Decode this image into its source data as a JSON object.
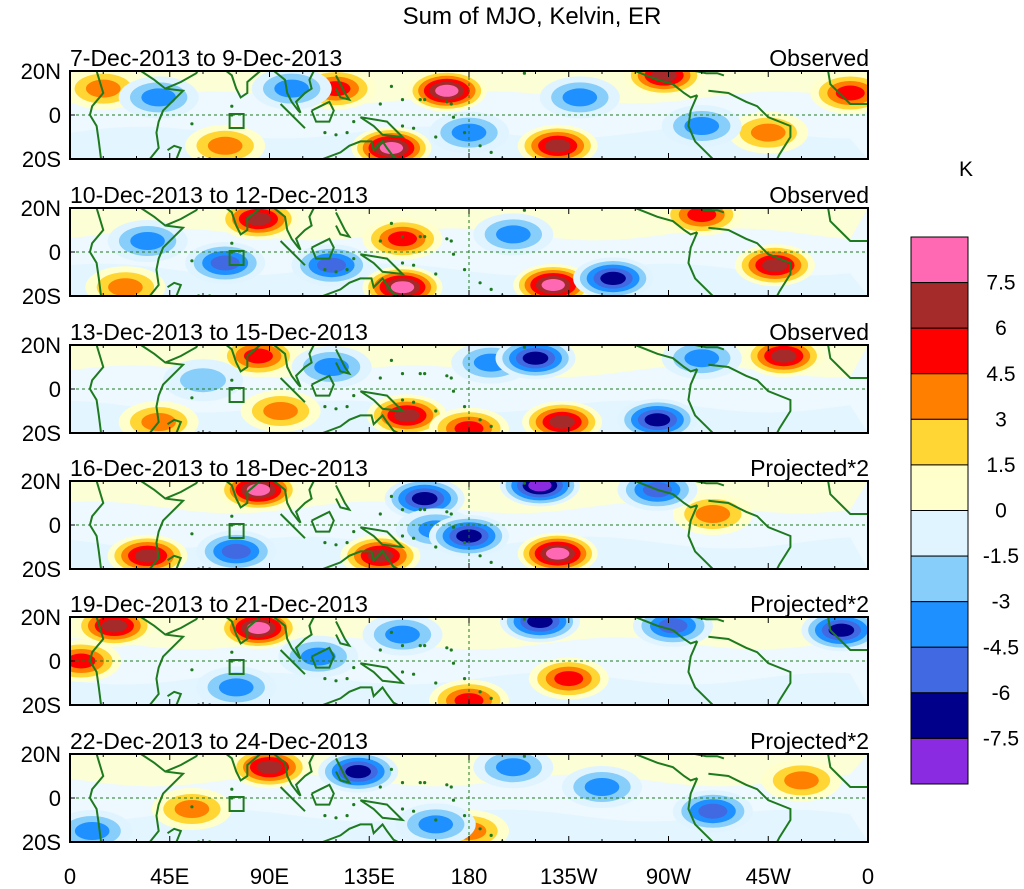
{
  "chart_data": {
    "type": "heatmap",
    "title": "Sum of MJO, Kelvin, ER",
    "units_label": "K",
    "x_ticks": [
      "0",
      "45E",
      "90E",
      "135E",
      "180",
      "135W",
      "90W",
      "45W",
      "0"
    ],
    "x_range_deg_east": [
      0,
      360
    ],
    "y_ticks": [
      "20N",
      "0",
      "20S"
    ],
    "y_range_deg": [
      -20,
      20
    ],
    "colorbar": {
      "colors": [
        "#8a2be2",
        "#00008b",
        "#4169e1",
        "#1e90ff",
        "#87cefa",
        "#e0f4ff",
        "#ffffcc",
        "#ffd633",
        "#ff8000",
        "#ff0000",
        "#a52a2a",
        "#ff69b4"
      ],
      "labels": [
        "-7.5",
        "-6",
        "-4.5",
        "-3",
        "-1.5",
        "0",
        "1.5",
        "3",
        "4.5",
        "6",
        "7.5"
      ]
    },
    "panels": [
      {
        "date_label": "7-Dec-2013 to 9-Dec-2013",
        "type_label": "Observed",
        "blobs": [
          {
            "lon": 120,
            "lat": 12,
            "value": 5
          },
          {
            "lon": 170,
            "lat": 11,
            "value": 8
          },
          {
            "lon": 145,
            "lat": -15,
            "value": 8
          },
          {
            "lon": 220,
            "lat": -14,
            "value": 7
          },
          {
            "lon": 268,
            "lat": 18,
            "value": 7
          },
          {
            "lon": 352,
            "lat": 10,
            "value": 5
          },
          {
            "lon": 315,
            "lat": -8,
            "value": 4
          },
          {
            "lon": 70,
            "lat": -14,
            "value": 4
          },
          {
            "lon": 15,
            "lat": 12,
            "value": 4
          },
          {
            "lon": 40,
            "lat": 8,
            "value": -3
          },
          {
            "lon": 100,
            "lat": 12,
            "value": -4
          },
          {
            "lon": 230,
            "lat": 8,
            "value": -3
          },
          {
            "lon": 285,
            "lat": -5,
            "value": -3
          },
          {
            "lon": 180,
            "lat": -8,
            "value": -3
          }
        ]
      },
      {
        "date_label": "10-Dec-2013 to 12-Dec-2013",
        "type_label": "Observed",
        "blobs": [
          {
            "lon": 85,
            "lat": 15,
            "value": 6
          },
          {
            "lon": 150,
            "lat": 6,
            "value": 5
          },
          {
            "lon": 150,
            "lat": -16,
            "value": 8
          },
          {
            "lon": 218,
            "lat": -15,
            "value": 8
          },
          {
            "lon": 318,
            "lat": -6,
            "value": 6
          },
          {
            "lon": 285,
            "lat": 17,
            "value": 5
          },
          {
            "lon": 25,
            "lat": -16,
            "value": 4
          },
          {
            "lon": 70,
            "lat": -5,
            "value": -5
          },
          {
            "lon": 118,
            "lat": -6,
            "value": -5
          },
          {
            "lon": 245,
            "lat": -12,
            "value": -7
          },
          {
            "lon": 200,
            "lat": 8,
            "value": -3
          },
          {
            "lon": 35,
            "lat": 5,
            "value": -3
          }
        ]
      },
      {
        "date_label": "13-Dec-2013 to 15-Dec-2013",
        "type_label": "Observed",
        "blobs": [
          {
            "lon": 85,
            "lat": 15,
            "value": 5
          },
          {
            "lon": 322,
            "lat": 15,
            "value": 6
          },
          {
            "lon": 152,
            "lat": -12,
            "value": 6
          },
          {
            "lon": 222,
            "lat": -15,
            "value": 6
          },
          {
            "lon": 95,
            "lat": -10,
            "value": 4
          },
          {
            "lon": 40,
            "lat": -15,
            "value": 4
          },
          {
            "lon": 180,
            "lat": -18,
            "value": 5
          },
          {
            "lon": 118,
            "lat": 10,
            "value": -4
          },
          {
            "lon": 190,
            "lat": 12,
            "value": -4
          },
          {
            "lon": 210,
            "lat": 14,
            "value": -6
          },
          {
            "lon": 265,
            "lat": -14,
            "value": -6
          },
          {
            "lon": 60,
            "lat": 4,
            "value": -2
          },
          {
            "lon": 285,
            "lat": 14,
            "value": -4
          }
        ]
      },
      {
        "date_label": "16-Dec-2013 to 18-Dec-2013",
        "type_label": "Projected*2",
        "blobs": [
          {
            "lon": 85,
            "lat": 16,
            "value": 8
          },
          {
            "lon": 35,
            "lat": -14,
            "value": 7
          },
          {
            "lon": 140,
            "lat": -14,
            "value": 7
          },
          {
            "lon": 220,
            "lat": -13,
            "value": 8
          },
          {
            "lon": 290,
            "lat": 5,
            "value": 4
          },
          {
            "lon": 160,
            "lat": 12,
            "value": -7
          },
          {
            "lon": 212,
            "lat": 18,
            "value": -8
          },
          {
            "lon": 75,
            "lat": -12,
            "value": -5
          },
          {
            "lon": 165,
            "lat": -2,
            "value": -4
          },
          {
            "lon": 265,
            "lat": 16,
            "value": -5
          },
          {
            "lon": 180,
            "lat": -5,
            "value": -6
          }
        ]
      },
      {
        "date_label": "19-Dec-2013 to 21-Dec-2013",
        "type_label": "Projected*2",
        "blobs": [
          {
            "lon": 20,
            "lat": 16,
            "value": 6
          },
          {
            "lon": 85,
            "lat": 15,
            "value": 8
          },
          {
            "lon": 180,
            "lat": -18,
            "value": 5
          },
          {
            "lon": 225,
            "lat": -8,
            "value": 5
          },
          {
            "lon": 5,
            "lat": 0,
            "value": 5
          },
          {
            "lon": 150,
            "lat": 12,
            "value": -4
          },
          {
            "lon": 212,
            "lat": 18,
            "value": -7
          },
          {
            "lon": 272,
            "lat": 16,
            "value": -5
          },
          {
            "lon": 348,
            "lat": 14,
            "value": -7
          },
          {
            "lon": 75,
            "lat": -12,
            "value": -4
          },
          {
            "lon": 112,
            "lat": 2,
            "value": -3
          }
        ]
      },
      {
        "date_label": "22-Dec-2013 to 24-Dec-2013",
        "type_label": "Projected*2",
        "blobs": [
          {
            "lon": 90,
            "lat": 14,
            "value": 7
          },
          {
            "lon": 55,
            "lat": -5,
            "value": 4
          },
          {
            "lon": 180,
            "lat": -15,
            "value": 4
          },
          {
            "lon": 330,
            "lat": 8,
            "value": 4
          },
          {
            "lon": 130,
            "lat": 12,
            "value": -6
          },
          {
            "lon": 200,
            "lat": 14,
            "value": -4
          },
          {
            "lon": 165,
            "lat": -12,
            "value": -4
          },
          {
            "lon": 240,
            "lat": 5,
            "value": -4
          },
          {
            "lon": 290,
            "lat": -6,
            "value": -5
          },
          {
            "lon": 10,
            "lat": -15,
            "value": -3
          }
        ]
      }
    ]
  }
}
